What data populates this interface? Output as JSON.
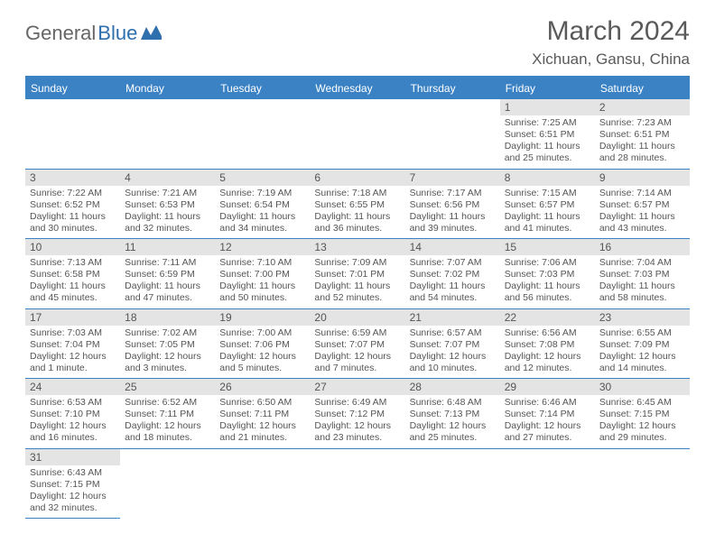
{
  "logo": {
    "text1": "General",
    "text2": "Blue"
  },
  "title": "March 2024",
  "location": "Xichuan, Gansu, China",
  "colors": {
    "header_bg": "#3b82c4",
    "header_text": "#ffffff",
    "daynum_bg": "#e4e4e4",
    "text": "#555555",
    "border": "#3b82c4"
  },
  "day_names": [
    "Sunday",
    "Monday",
    "Tuesday",
    "Wednesday",
    "Thursday",
    "Friday",
    "Saturday"
  ],
  "grid_cols": 7,
  "leading_blanks": 5,
  "days": [
    {
      "n": "1",
      "sunrise": "Sunrise: 7:25 AM",
      "sunset": "Sunset: 6:51 PM",
      "daylight": "Daylight: 11 hours and 25 minutes."
    },
    {
      "n": "2",
      "sunrise": "Sunrise: 7:23 AM",
      "sunset": "Sunset: 6:51 PM",
      "daylight": "Daylight: 11 hours and 28 minutes."
    },
    {
      "n": "3",
      "sunrise": "Sunrise: 7:22 AM",
      "sunset": "Sunset: 6:52 PM",
      "daylight": "Daylight: 11 hours and 30 minutes."
    },
    {
      "n": "4",
      "sunrise": "Sunrise: 7:21 AM",
      "sunset": "Sunset: 6:53 PM",
      "daylight": "Daylight: 11 hours and 32 minutes."
    },
    {
      "n": "5",
      "sunrise": "Sunrise: 7:19 AM",
      "sunset": "Sunset: 6:54 PM",
      "daylight": "Daylight: 11 hours and 34 minutes."
    },
    {
      "n": "6",
      "sunrise": "Sunrise: 7:18 AM",
      "sunset": "Sunset: 6:55 PM",
      "daylight": "Daylight: 11 hours and 36 minutes."
    },
    {
      "n": "7",
      "sunrise": "Sunrise: 7:17 AM",
      "sunset": "Sunset: 6:56 PM",
      "daylight": "Daylight: 11 hours and 39 minutes."
    },
    {
      "n": "8",
      "sunrise": "Sunrise: 7:15 AM",
      "sunset": "Sunset: 6:57 PM",
      "daylight": "Daylight: 11 hours and 41 minutes."
    },
    {
      "n": "9",
      "sunrise": "Sunrise: 7:14 AM",
      "sunset": "Sunset: 6:57 PM",
      "daylight": "Daylight: 11 hours and 43 minutes."
    },
    {
      "n": "10",
      "sunrise": "Sunrise: 7:13 AM",
      "sunset": "Sunset: 6:58 PM",
      "daylight": "Daylight: 11 hours and 45 minutes."
    },
    {
      "n": "11",
      "sunrise": "Sunrise: 7:11 AM",
      "sunset": "Sunset: 6:59 PM",
      "daylight": "Daylight: 11 hours and 47 minutes."
    },
    {
      "n": "12",
      "sunrise": "Sunrise: 7:10 AM",
      "sunset": "Sunset: 7:00 PM",
      "daylight": "Daylight: 11 hours and 50 minutes."
    },
    {
      "n": "13",
      "sunrise": "Sunrise: 7:09 AM",
      "sunset": "Sunset: 7:01 PM",
      "daylight": "Daylight: 11 hours and 52 minutes."
    },
    {
      "n": "14",
      "sunrise": "Sunrise: 7:07 AM",
      "sunset": "Sunset: 7:02 PM",
      "daylight": "Daylight: 11 hours and 54 minutes."
    },
    {
      "n": "15",
      "sunrise": "Sunrise: 7:06 AM",
      "sunset": "Sunset: 7:03 PM",
      "daylight": "Daylight: 11 hours and 56 minutes."
    },
    {
      "n": "16",
      "sunrise": "Sunrise: 7:04 AM",
      "sunset": "Sunset: 7:03 PM",
      "daylight": "Daylight: 11 hours and 58 minutes."
    },
    {
      "n": "17",
      "sunrise": "Sunrise: 7:03 AM",
      "sunset": "Sunset: 7:04 PM",
      "daylight": "Daylight: 12 hours and 1 minute."
    },
    {
      "n": "18",
      "sunrise": "Sunrise: 7:02 AM",
      "sunset": "Sunset: 7:05 PM",
      "daylight": "Daylight: 12 hours and 3 minutes."
    },
    {
      "n": "19",
      "sunrise": "Sunrise: 7:00 AM",
      "sunset": "Sunset: 7:06 PM",
      "daylight": "Daylight: 12 hours and 5 minutes."
    },
    {
      "n": "20",
      "sunrise": "Sunrise: 6:59 AM",
      "sunset": "Sunset: 7:07 PM",
      "daylight": "Daylight: 12 hours and 7 minutes."
    },
    {
      "n": "21",
      "sunrise": "Sunrise: 6:57 AM",
      "sunset": "Sunset: 7:07 PM",
      "daylight": "Daylight: 12 hours and 10 minutes."
    },
    {
      "n": "22",
      "sunrise": "Sunrise: 6:56 AM",
      "sunset": "Sunset: 7:08 PM",
      "daylight": "Daylight: 12 hours and 12 minutes."
    },
    {
      "n": "23",
      "sunrise": "Sunrise: 6:55 AM",
      "sunset": "Sunset: 7:09 PM",
      "daylight": "Daylight: 12 hours and 14 minutes."
    },
    {
      "n": "24",
      "sunrise": "Sunrise: 6:53 AM",
      "sunset": "Sunset: 7:10 PM",
      "daylight": "Daylight: 12 hours and 16 minutes."
    },
    {
      "n": "25",
      "sunrise": "Sunrise: 6:52 AM",
      "sunset": "Sunset: 7:11 PM",
      "daylight": "Daylight: 12 hours and 18 minutes."
    },
    {
      "n": "26",
      "sunrise": "Sunrise: 6:50 AM",
      "sunset": "Sunset: 7:11 PM",
      "daylight": "Daylight: 12 hours and 21 minutes."
    },
    {
      "n": "27",
      "sunrise": "Sunrise: 6:49 AM",
      "sunset": "Sunset: 7:12 PM",
      "daylight": "Daylight: 12 hours and 23 minutes."
    },
    {
      "n": "28",
      "sunrise": "Sunrise: 6:48 AM",
      "sunset": "Sunset: 7:13 PM",
      "daylight": "Daylight: 12 hours and 25 minutes."
    },
    {
      "n": "29",
      "sunrise": "Sunrise: 6:46 AM",
      "sunset": "Sunset: 7:14 PM",
      "daylight": "Daylight: 12 hours and 27 minutes."
    },
    {
      "n": "30",
      "sunrise": "Sunrise: 6:45 AM",
      "sunset": "Sunset: 7:15 PM",
      "daylight": "Daylight: 12 hours and 29 minutes."
    },
    {
      "n": "31",
      "sunrise": "Sunrise: 6:43 AM",
      "sunset": "Sunset: 7:15 PM",
      "daylight": "Daylight: 12 hours and 32 minutes."
    }
  ]
}
